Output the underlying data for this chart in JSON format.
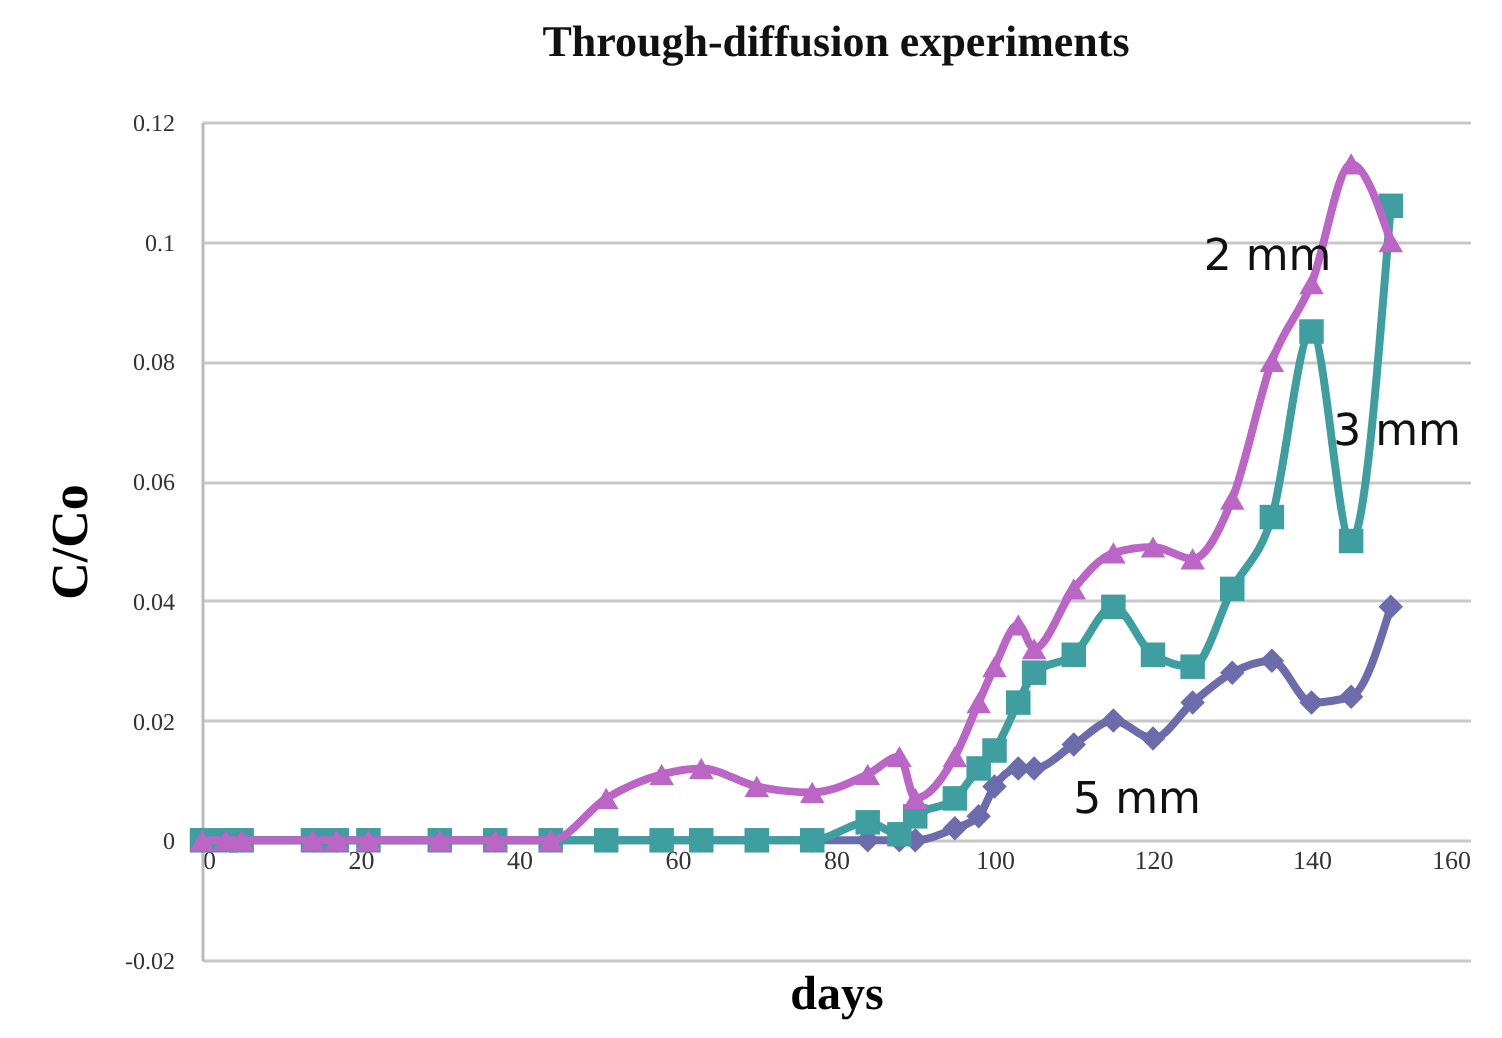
{
  "chart_data": {
    "type": "line",
    "title": "Through-diffusion experiments",
    "xlabel": "days",
    "ylabel": "C/Co",
    "x": [
      0,
      3,
      5,
      14,
      17,
      21,
      30,
      37,
      44,
      51,
      58,
      63,
      70,
      77,
      84,
      88,
      90,
      95,
      98,
      100,
      103,
      105,
      110,
      115,
      120,
      125,
      130,
      135,
      140,
      145,
      150
    ],
    "series": [
      {
        "name": "2 mm",
        "color": "#bb66c6",
        "marker": "triangle",
        "values": [
          0,
          0,
          0,
          0,
          0,
          0,
          0,
          0,
          0,
          0.007,
          0.011,
          0.012,
          0.009,
          0.008,
          0.011,
          0.014,
          0.007,
          0.014,
          0.023,
          0.029,
          0.036,
          0.032,
          0.042,
          0.048,
          0.049,
          0.047,
          0.057,
          0.08,
          0.093,
          0.113,
          0.1
        ]
      },
      {
        "name": "3 mm",
        "color": "#3f9ea0",
        "marker": "square",
        "values": [
          0,
          0,
          0,
          0,
          0,
          0,
          0,
          0,
          0,
          0,
          0,
          0,
          0,
          0,
          0.003,
          0.001,
          0.004,
          0.007,
          0.012,
          0.015,
          0.023,
          0.028,
          0.031,
          0.039,
          0.031,
          0.029,
          0.042,
          0.054,
          0.085,
          0.05,
          0.106
        ]
      },
      {
        "name": "5 mm",
        "color": "#6c6cac",
        "marker": "diamond",
        "values": [
          0,
          0,
          0,
          0,
          0,
          0,
          0,
          0,
          0,
          0,
          0,
          0,
          0,
          0,
          0,
          0,
          0,
          0.002,
          0.004,
          0.009,
          0.012,
          0.012,
          0.016,
          0.02,
          0.017,
          0.023,
          0.028,
          0.03,
          0.023,
          0.024,
          0.039
        ]
      }
    ],
    "xlim": [
      0,
      160
    ],
    "xticks": [
      0,
      20,
      40,
      60,
      80,
      100,
      120,
      140,
      160
    ],
    "ylim": [
      -0.02,
      0.12
    ],
    "yticks": [
      -0.02,
      0,
      0.02,
      0.04,
      0.06,
      0.08,
      0.1,
      0.12
    ],
    "grid": "y",
    "legend": false,
    "line_style": "solid"
  }
}
